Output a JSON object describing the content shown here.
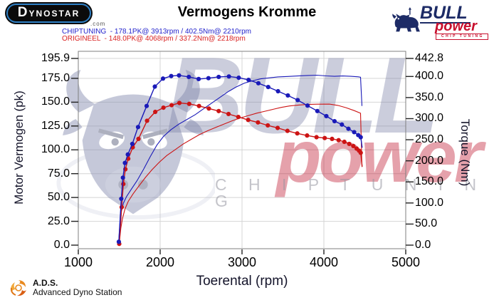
{
  "header": {
    "dynostar_text": "DYNOSTAR",
    "dynostar_suffix": ".com",
    "title": "Vermogens Kromme",
    "legend": [
      {
        "name": "CHIPTUNING",
        "color": "#2323cc",
        "text": "CHIPTUNING  - 178.1PK@ 3913rpm / 402.5Nm@ 2210rpm"
      },
      {
        "name": "ORIGINEEL",
        "color": "#d92222",
        "text": "ORIGINEEL  - 148.0PK@ 4068rpm / 337.2Nm@ 2218rpm"
      }
    ],
    "bull_logo": {
      "line1": "BULL",
      "line2": "power",
      "line3": "CHIP TUNING"
    }
  },
  "watermark": {
    "bull_text": "BULL",
    "power_text": "power",
    "chip_text": "C H I P  T U N I N G"
  },
  "footer": {
    "ads_abbr": "A.D.S.",
    "ads_name": "Advanced Dyno Station"
  },
  "chart_data": {
    "type": "line",
    "title": "Vermogens Kromme",
    "xlabel": "Toerental (rpm)",
    "ylabel_left": "Motor Vermogen (pk)",
    "ylabel_right": "Torque (Nm)",
    "xlim": [
      1000,
      5000
    ],
    "left_max": 195.9,
    "right_max": 442.8,
    "x_ticks": [
      1000,
      2000,
      3000,
      4000,
      5000
    ],
    "x_gridlines": [
      2000,
      3000,
      4000
    ],
    "left_ticks": [
      0,
      25,
      50,
      75,
      100,
      125,
      150,
      175,
      195.9
    ],
    "right_ticks": [
      0,
      50,
      100,
      150,
      200,
      250,
      300,
      350,
      400,
      442.8
    ],
    "grid": true,
    "legend_position": "top-left",
    "series": [
      {
        "name": "origineel-power",
        "axis": "left",
        "color": "#cc1414",
        "width": 1.1,
        "markers": false,
        "drop_to": 82,
        "points": [
          [
            1500,
            1
          ],
          [
            1508,
            8
          ],
          [
            1520,
            18
          ],
          [
            1540,
            28
          ],
          [
            1570,
            38
          ],
          [
            1610,
            46
          ],
          [
            1670,
            54
          ],
          [
            1740,
            62
          ],
          [
            1820,
            71
          ],
          [
            1900,
            79
          ],
          [
            1990,
            87
          ],
          [
            2080,
            94
          ],
          [
            2180,
            100
          ],
          [
            2280,
            106
          ],
          [
            2380,
            111
          ],
          [
            2480,
            116
          ],
          [
            2580,
            120
          ],
          [
            2680,
            123.5
          ],
          [
            2780,
            127
          ],
          [
            2880,
            130.5
          ],
          [
            2980,
            133.5
          ],
          [
            3080,
            136
          ],
          [
            3180,
            138.5
          ],
          [
            3280,
            140.5
          ],
          [
            3380,
            142.5
          ],
          [
            3480,
            144.5
          ],
          [
            3580,
            146
          ],
          [
            3690,
            147
          ],
          [
            3800,
            147.6
          ],
          [
            3920,
            147.9
          ],
          [
            4068,
            148
          ],
          [
            4170,
            146.6
          ],
          [
            4270,
            144.2
          ],
          [
            4370,
            141.2
          ],
          [
            4448,
            138.4
          ]
        ]
      },
      {
        "name": "chiptuning-power",
        "axis": "left",
        "color": "#1a1ab8",
        "width": 1.1,
        "markers": false,
        "drop_to": 146,
        "points": [
          [
            1495,
            2
          ],
          [
            1500,
            12
          ],
          [
            1510,
            25
          ],
          [
            1525,
            35
          ],
          [
            1550,
            44
          ],
          [
            1590,
            51
          ],
          [
            1650,
            59
          ],
          [
            1720,
            68
          ],
          [
            1800,
            80
          ],
          [
            1880,
            93
          ],
          [
            1960,
            105
          ],
          [
            2040,
            114
          ],
          [
            2130,
            121
          ],
          [
            2230,
            127
          ],
          [
            2330,
            132
          ],
          [
            2430,
            137
          ],
          [
            2530,
            143
          ],
          [
            2630,
            149
          ],
          [
            2730,
            155
          ],
          [
            2830,
            161
          ],
          [
            2930,
            166
          ],
          [
            3030,
            170
          ],
          [
            3130,
            172.5
          ],
          [
            3230,
            174.5
          ],
          [
            3330,
            175.5
          ],
          [
            3440,
            176.5
          ],
          [
            3560,
            177
          ],
          [
            3680,
            177.5
          ],
          [
            3800,
            178
          ],
          [
            3913,
            178.3
          ],
          [
            4030,
            177.6
          ],
          [
            4130,
            177.1
          ],
          [
            4230,
            177.5
          ],
          [
            4330,
            177.1
          ],
          [
            4420,
            176.6
          ],
          [
            4448,
            176.2
          ]
        ]
      },
      {
        "name": "origineel-torque",
        "axis": "right",
        "color": "#cc1414",
        "width": 1.4,
        "markers": true,
        "drop_to": 186,
        "points": [
          [
            1500,
            3
          ],
          [
            1530,
            90
          ],
          [
            1550,
            145
          ],
          [
            1575,
            180
          ],
          [
            1610,
            205
          ],
          [
            1665,
            232
          ],
          [
            1735,
            252
          ],
          [
            1840,
            295
          ],
          [
            1940,
            316
          ],
          [
            2040,
            326
          ],
          [
            2140,
            332
          ],
          [
            2235,
            337.2
          ],
          [
            2355,
            335
          ],
          [
            2475,
            330
          ],
          [
            2595,
            324
          ],
          [
            2715,
            318
          ],
          [
            2835,
            311
          ],
          [
            2955,
            304
          ],
          [
            3075,
            297
          ],
          [
            3195,
            291
          ],
          [
            3315,
            284
          ],
          [
            3435,
            278
          ],
          [
            3555,
            271
          ],
          [
            3675,
            265
          ],
          [
            3795,
            260
          ],
          [
            3910,
            256
          ],
          [
            4010,
            254
          ],
          [
            4100,
            252
          ],
          [
            4180,
            249
          ],
          [
            4250,
            245
          ],
          [
            4310,
            240
          ],
          [
            4360,
            235
          ],
          [
            4400,
            229
          ],
          [
            4430,
            224
          ],
          [
            4450,
            219
          ]
        ]
      },
      {
        "name": "chiptuning-torque",
        "axis": "right",
        "color": "#1a1ab8",
        "width": 1.4,
        "markers": true,
        "drop_to": 231,
        "points": [
          [
            1495,
            8
          ],
          [
            1525,
            110
          ],
          [
            1545,
            160
          ],
          [
            1570,
            195
          ],
          [
            1605,
            215
          ],
          [
            1660,
            240
          ],
          [
            1730,
            280
          ],
          [
            1835,
            330
          ],
          [
            1935,
            376
          ],
          [
            2035,
            395
          ],
          [
            2135,
            401
          ],
          [
            2230,
            402.5
          ],
          [
            2350,
            399
          ],
          [
            2470,
            394
          ],
          [
            2590,
            396
          ],
          [
            2715,
            399
          ],
          [
            2840,
            400
          ],
          [
            2960,
            397
          ],
          [
            3080,
            392
          ],
          [
            3200,
            384
          ],
          [
            3320,
            375
          ],
          [
            3440,
            365
          ],
          [
            3560,
            355
          ],
          [
            3680,
            344
          ],
          [
            3800,
            331
          ],
          [
            3920,
            318
          ],
          [
            4030,
            306
          ],
          [
            4130,
            294
          ],
          [
            4220,
            286
          ],
          [
            4300,
            276
          ],
          [
            4370,
            268
          ],
          [
            4420,
            261
          ],
          [
            4450,
            256
          ]
        ]
      }
    ]
  }
}
